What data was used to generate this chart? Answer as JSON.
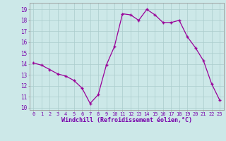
{
  "x": [
    0,
    1,
    2,
    3,
    4,
    5,
    6,
    7,
    8,
    9,
    10,
    11,
    12,
    13,
    14,
    15,
    16,
    17,
    18,
    19,
    20,
    21,
    22,
    23
  ],
  "y": [
    14.1,
    13.9,
    13.5,
    13.1,
    12.9,
    12.5,
    11.8,
    10.4,
    11.2,
    13.9,
    15.6,
    18.6,
    18.5,
    18.0,
    19.0,
    18.5,
    17.8,
    17.8,
    18.0,
    16.5,
    15.5,
    14.3,
    12.2,
    10.7
  ],
  "line_color": "#990099",
  "marker": "+",
  "marker_size": 3.5,
  "marker_lw": 1.0,
  "line_width": 0.9,
  "xlabel": "Windchill (Refroidissement éolien,°C)",
  "xlabel_color": "#7700aa",
  "tick_color": "#7700aa",
  "bg_color": "#cce8e8",
  "grid_color": "#aacccc",
  "ylim": [
    9.8,
    19.6
  ],
  "yticks": [
    10,
    11,
    12,
    13,
    14,
    15,
    16,
    17,
    18,
    19
  ],
  "xlim": [
    -0.5,
    23.5
  ],
  "spine_color": "#999999",
  "font": "monospace",
  "xtick_fontsize": 5.0,
  "ytick_fontsize": 5.5,
  "xlabel_fontsize": 6.0
}
